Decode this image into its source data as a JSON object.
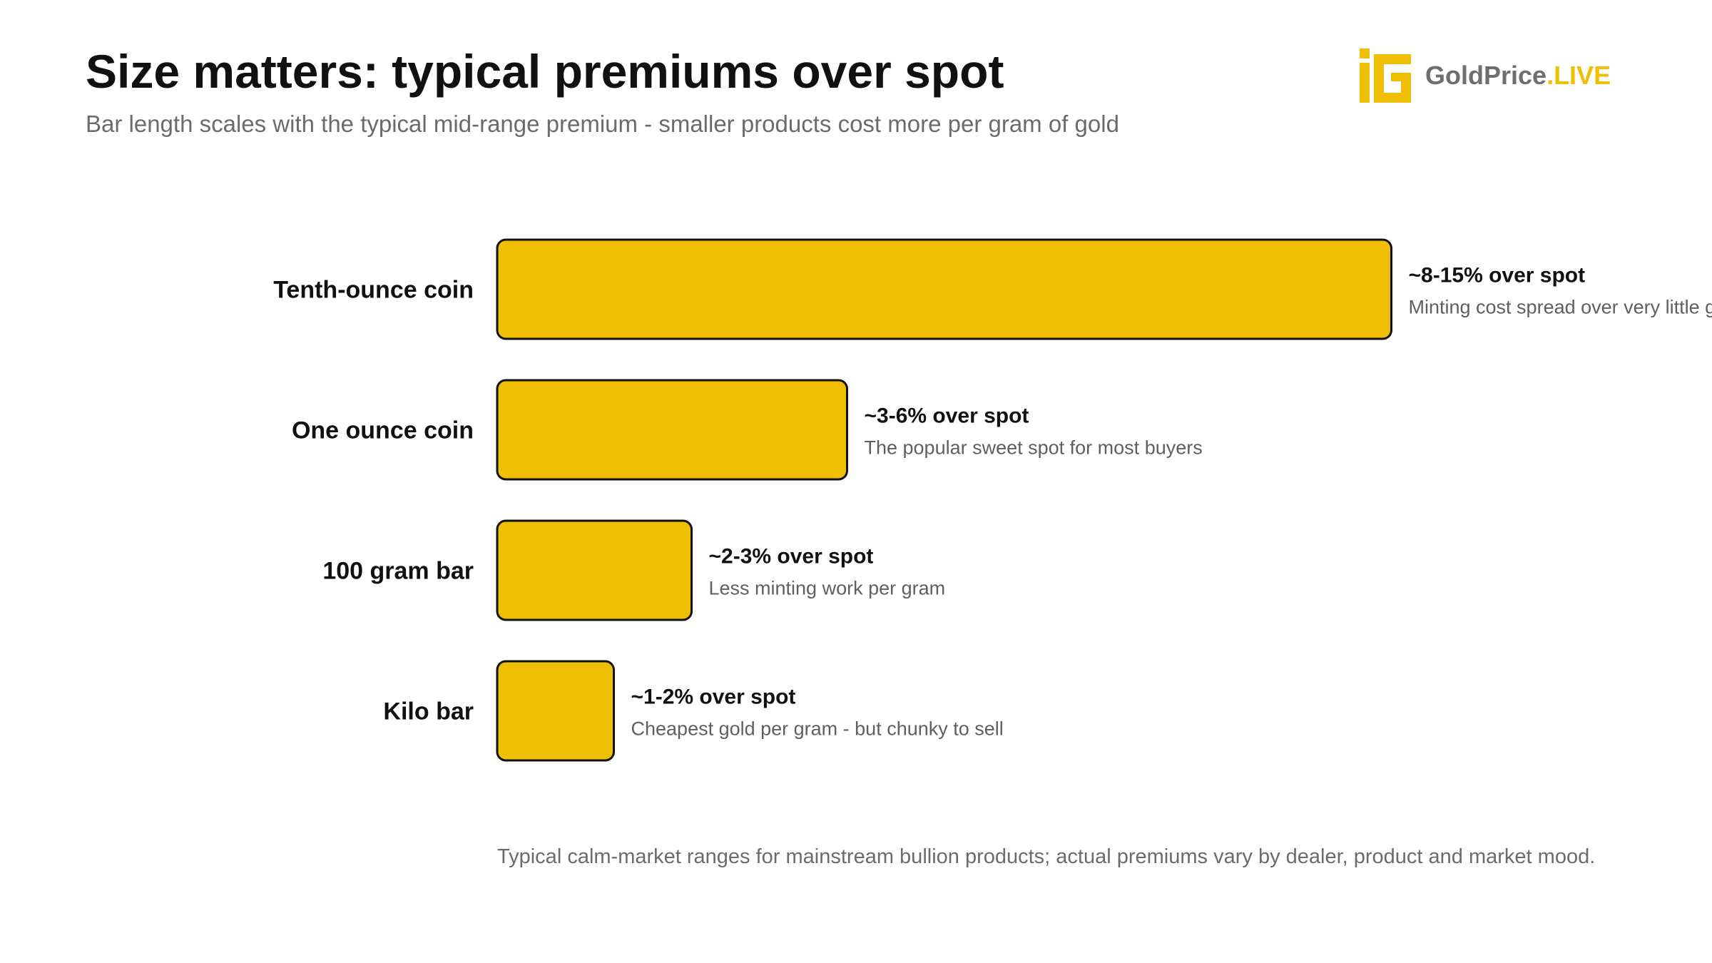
{
  "header": {
    "title": "Size matters: typical premiums over spot",
    "subtitle": "Bar length scales with the typical mid-range premium - smaller products cost more per gram of gold"
  },
  "logo": {
    "text_main": "GoldPrice",
    "text_accent": ".LIVE",
    "icon": "goldprice-logo-icon",
    "color": "#efbf05"
  },
  "chart_data": {
    "type": "bar",
    "orientation": "horizontal",
    "bar_color": "#efbf05",
    "bar_outline": "#111111",
    "categories": [
      "Tenth-ounce coin",
      "One ounce coin",
      "100 gram bar",
      "Kilo bar"
    ],
    "values": [
      11.5,
      4.5,
      2.5,
      1.5
    ],
    "value_labels": [
      "~8-15% over spot",
      "~3-6% over spot",
      "~2-3% over spot",
      "~1-2% over spot"
    ],
    "notes": [
      "Minting cost spread over very little gold",
      "The popular sweet spot for most buyers",
      "Less minting work per gram",
      "Cheapest gold per gram - but chunky to sell"
    ],
    "grid": false,
    "legend": "none"
  },
  "footer": {
    "note": "Typical calm-market ranges for mainstream bullion products; actual premiums vary by dealer, product and market mood."
  }
}
